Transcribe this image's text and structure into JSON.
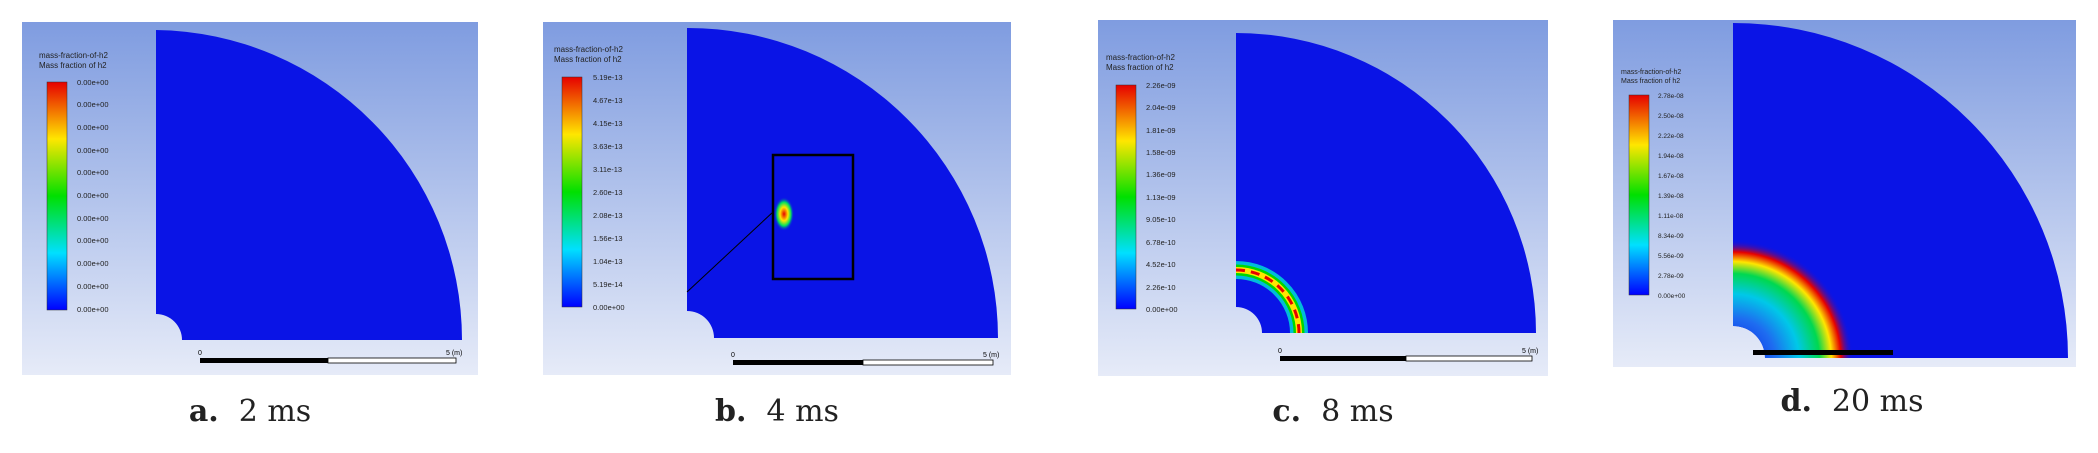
{
  "panels": [
    {
      "id": "a",
      "letter": "a.",
      "time": "2 ms",
      "legend_title": "mass-fraction-of-h2",
      "legend_subtitle": "Mass fraction of h2",
      "ticks": [
        "0.00e+00",
        "0.00e+00",
        "0.00e+00",
        "0.00e+00",
        "0.00e+00",
        "0.00e+00",
        "0.00e+00",
        "0.00e+00",
        "0.00e+00",
        "0.00e+00",
        "0.00e+00"
      ],
      "scale_start": "0",
      "scale_end": "5 (m)"
    },
    {
      "id": "b",
      "letter": "b.",
      "time": "4 ms",
      "legend_title": "mass-fraction-of-h2",
      "legend_subtitle": "Mass fraction of h2",
      "ticks": [
        "5.19e-13",
        "4.67e-13",
        "4.15e-13",
        "3.63e-13",
        "3.11e-13",
        "2.60e-13",
        "2.08e-13",
        "1.56e-13",
        "1.04e-13",
        "5.19e-14",
        "0.00e+00"
      ],
      "scale_start": "0",
      "scale_end": "5 (m)"
    },
    {
      "id": "c",
      "letter": "c.",
      "time": "8 ms",
      "legend_title": "mass-fraction-of-h2",
      "legend_subtitle": "Mass fraction of h2",
      "ticks": [
        "2.26e-09",
        "2.04e-09",
        "1.81e-09",
        "1.58e-09",
        "1.36e-09",
        "1.13e-09",
        "9.05e-10",
        "6.78e-10",
        "4.52e-10",
        "2.26e-10",
        "0.00e+00"
      ],
      "scale_start": "0",
      "scale_end": "5 (m)"
    },
    {
      "id": "d",
      "letter": "d.",
      "time": "20 ms",
      "legend_title": "mass-fraction-of-h2",
      "legend_subtitle": "Mass fraction of h2",
      "ticks": [
        "2.78e-08",
        "2.50e-08",
        "2.22e-08",
        "1.94e-08",
        "1.67e-08",
        "1.39e-08",
        "1.11e-08",
        "8.34e-09",
        "5.56e-09",
        "2.78e-09",
        "0.00e+00"
      ],
      "scale_start": "",
      "scale_end": ""
    }
  ],
  "colors": {
    "background_top": "#7f9ce0",
    "background_bottom": "#e6ebf8",
    "domain_blue": "#0a14e6",
    "hot_red": "#e60000",
    "mid_yellow": "#ffe600",
    "mid_green": "#00d800",
    "mid_cyan": "#00e0e0"
  }
}
